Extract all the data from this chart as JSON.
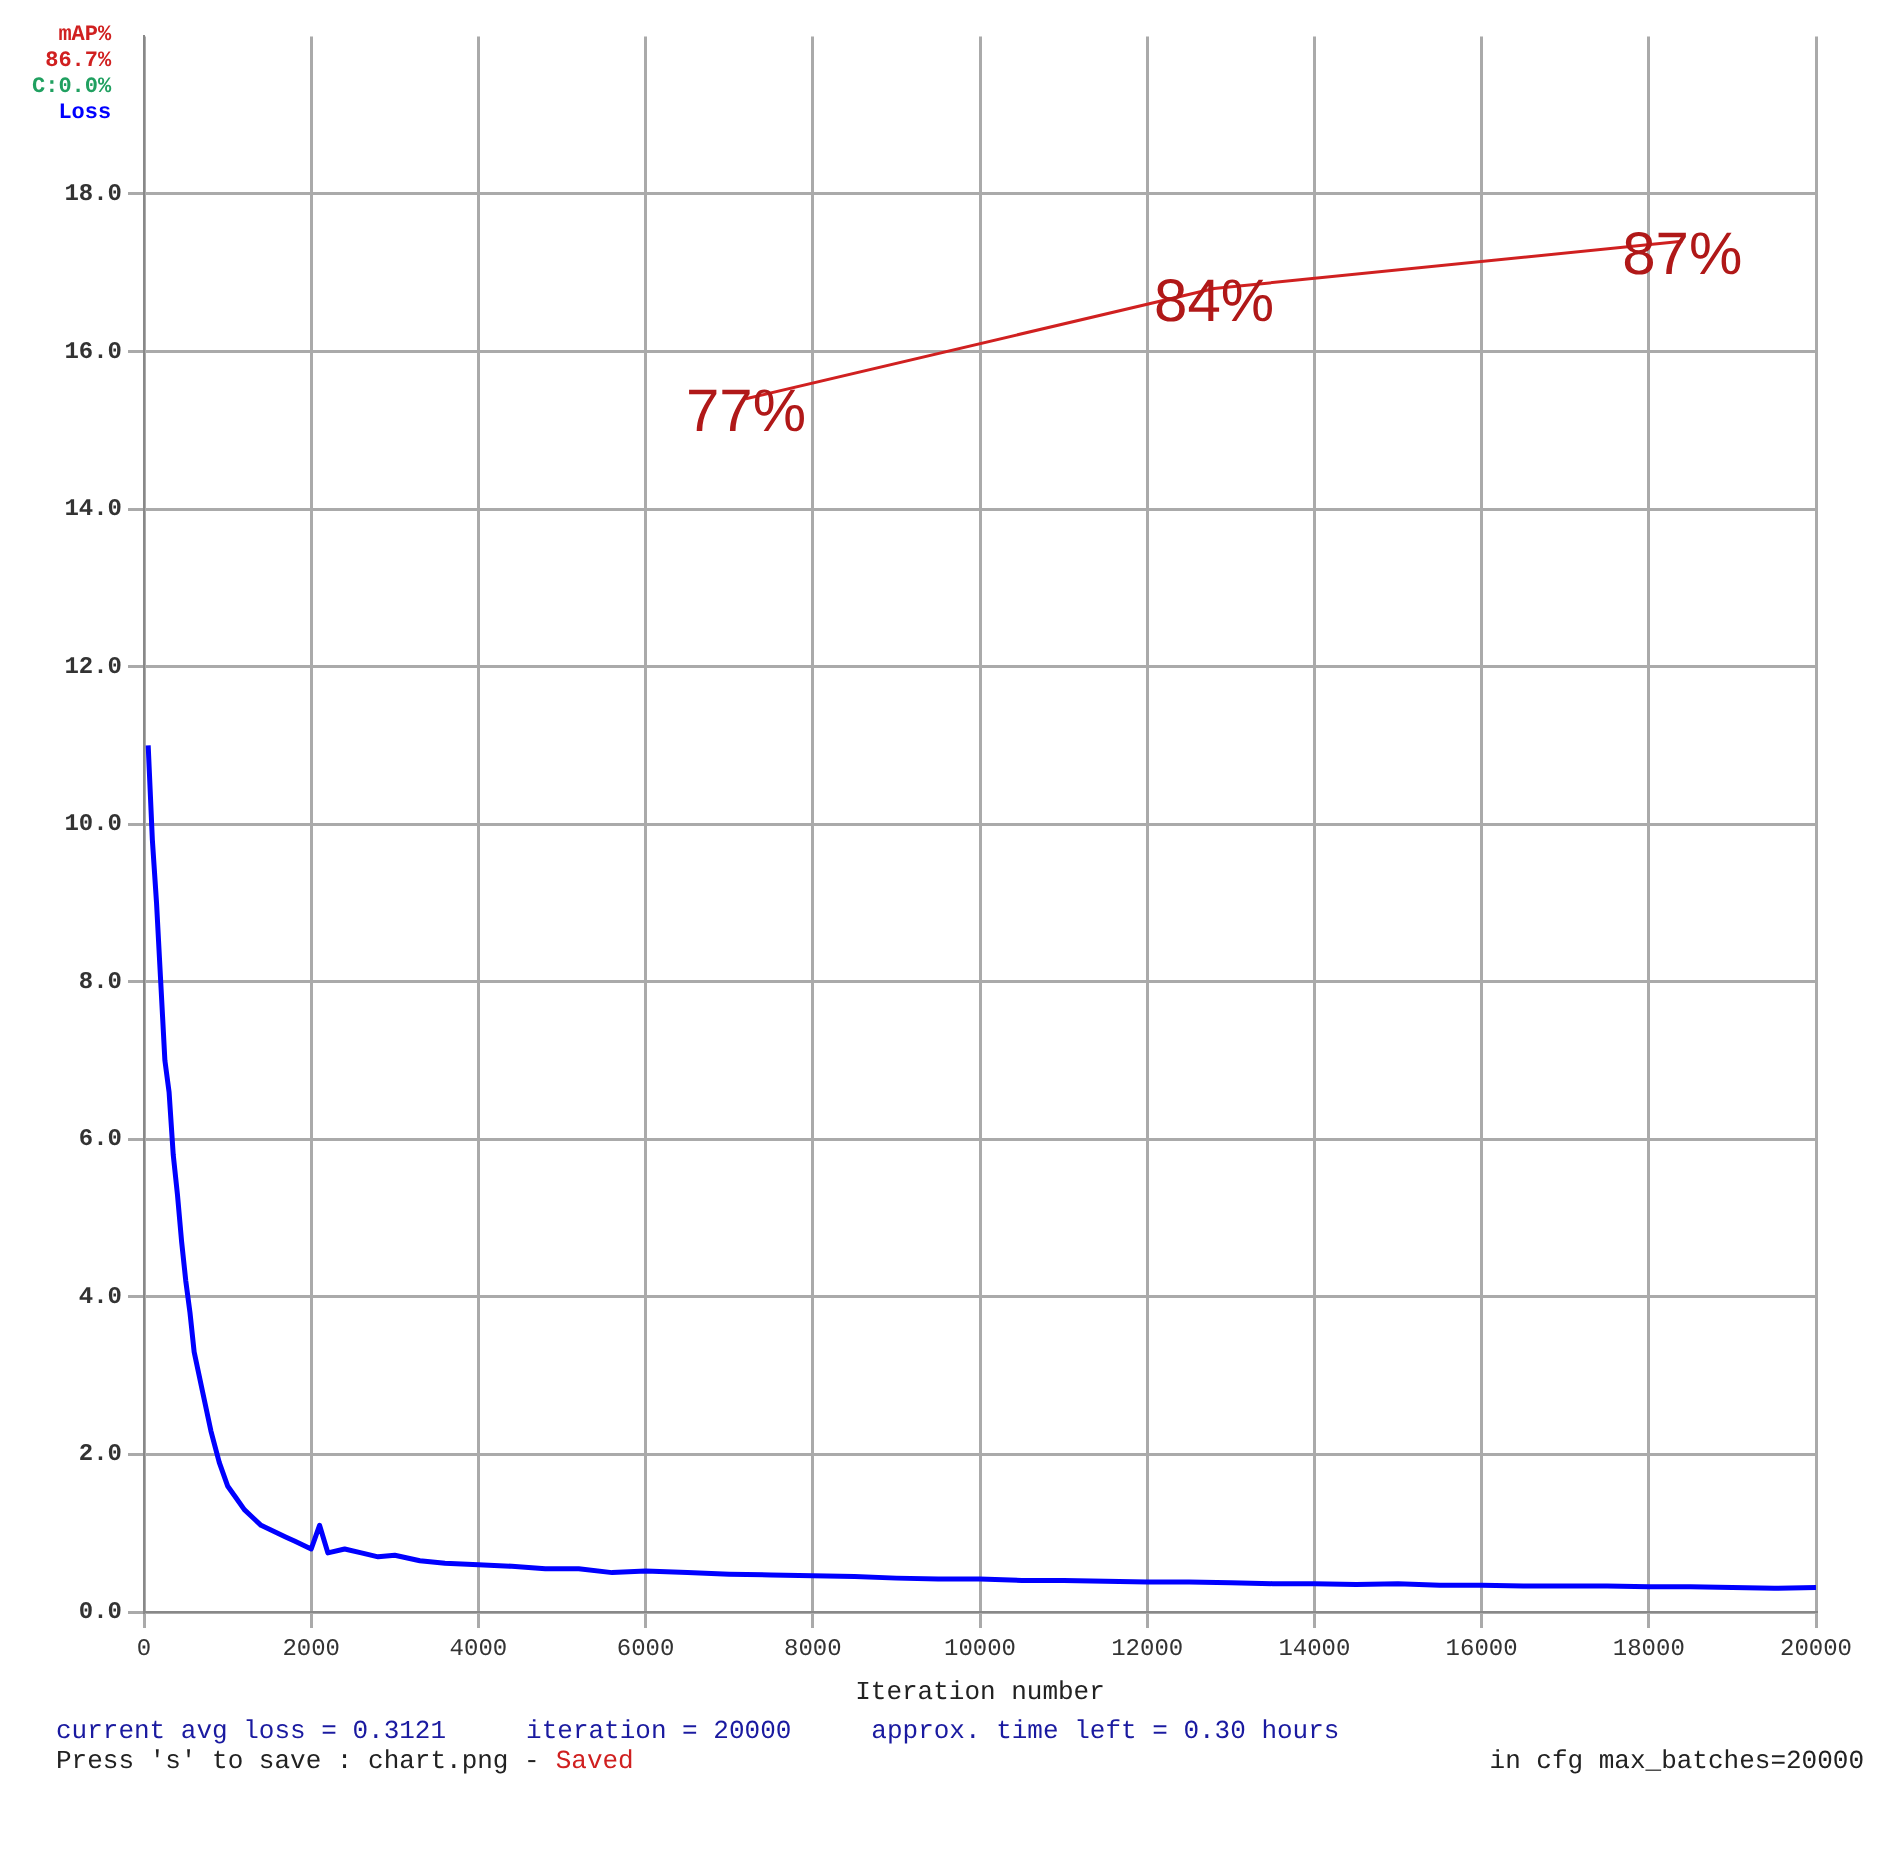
{
  "chart_data": {
    "type": "line",
    "xlabel": "Iteration number",
    "legend": "top left",
    "grid": true,
    "marker": "none",
    "xlim": [
      0,
      20000
    ],
    "xticks": [
      0,
      2000,
      4000,
      6000,
      8000,
      10000,
      12000,
      14000,
      16000,
      18000,
      20000
    ],
    "ylim": [
      0,
      20
    ],
    "yticks": [
      {
        "value": 0,
        "label": "0.0"
      },
      {
        "value": 2,
        "label": "2.0"
      },
      {
        "value": 4,
        "label": "4.0"
      },
      {
        "value": 6,
        "label": "6.0"
      },
      {
        "value": 8,
        "label": "8.0"
      },
      {
        "value": 10,
        "label": "10.0"
      },
      {
        "value": 12,
        "label": "12.0"
      },
      {
        "value": 14,
        "label": "14.0"
      },
      {
        "value": 16,
        "label": "16.0"
      },
      {
        "value": 18,
        "label": "18.0"
      }
    ],
    "y2lim": [
      0,
      100
    ],
    "series": [
      {
        "name": "mAP%",
        "color": "#d02020",
        "axis": "y2",
        "x": [
          7200,
          12800,
          18400
        ],
        "values": [
          77,
          84,
          87
        ],
        "value_labels": [
          "77%",
          "84%",
          "87%"
        ]
      },
      {
        "name": "Loss",
        "color": "#0000ff",
        "x": [
          50,
          100,
          150,
          200,
          250,
          300,
          350,
          400,
          450,
          500,
          550,
          600,
          700,
          800,
          900,
          1000,
          1100,
          1200,
          1300,
          1400,
          1500,
          1600,
          1700,
          1800,
          1900,
          2000,
          2100,
          2200,
          2400,
          2600,
          2800,
          3000,
          3300,
          3600,
          4000,
          4400,
          4800,
          5200,
          5600,
          6000,
          6500,
          7000,
          7500,
          8000,
          8500,
          9000,
          9500,
          10000,
          10500,
          11000,
          11500,
          12000,
          12500,
          13000,
          13500,
          14000,
          14500,
          15000,
          15500,
          16000,
          16500,
          17000,
          17500,
          18000,
          18500,
          19000,
          19500,
          20000
        ],
        "values": [
          11,
          9.8,
          9,
          8,
          7,
          6.6,
          5.8,
          5.3,
          4.7,
          4.2,
          3.8,
          3.3,
          2.8,
          2.3,
          1.9,
          1.6,
          1.45,
          1.3,
          1.2,
          1.1,
          1.05,
          1.0,
          0.95,
          0.9,
          0.85,
          0.8,
          1.1,
          0.75,
          0.8,
          0.75,
          0.7,
          0.72,
          0.65,
          0.62,
          0.6,
          0.58,
          0.55,
          0.55,
          0.5,
          0.52,
          0.5,
          0.48,
          0.47,
          0.46,
          0.45,
          0.43,
          0.42,
          0.42,
          0.4,
          0.4,
          0.39,
          0.38,
          0.38,
          0.37,
          0.36,
          0.36,
          0.35,
          0.36,
          0.34,
          0.34,
          0.33,
          0.33,
          0.33,
          0.32,
          0.32,
          0.31,
          0.3,
          0.31
        ]
      }
    ],
    "annotations": [
      "current avg loss = 0.3121",
      "iteration = 20000",
      "approx. time left = 0.30 hours",
      "Press 's' to save : chart.png -",
      "Saved",
      "in cfg max_batches=20000",
      "86.7%",
      "C:0.0%"
    ]
  }
}
